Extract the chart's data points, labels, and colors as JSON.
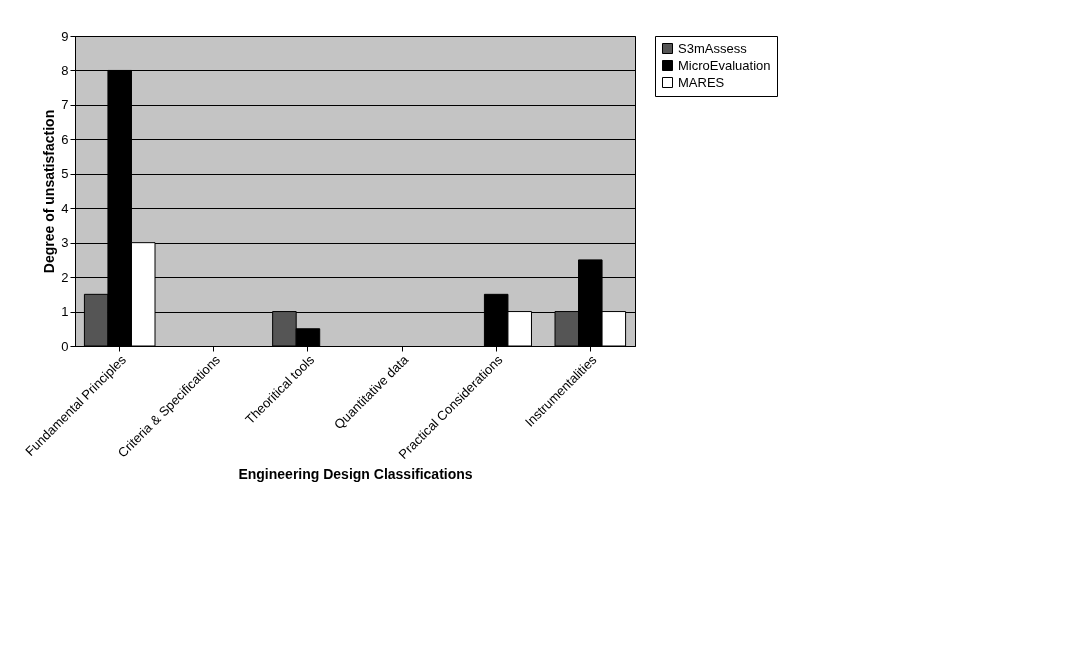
{
  "chart_data": {
    "type": "bar",
    "xlabel": "Engineering Design Classifications",
    "ylabel": "Degree of unsatisfaction",
    "categories": [
      "Fundamental  Principles",
      "Criteria & Specifications",
      "Theoritical  tools",
      "Quantitative  data",
      "Practical  Considerations",
      "Instrumentalities"
    ],
    "series": [
      {
        "name": "S3mAssess",
        "color": "#555555",
        "values": [
          1.5,
          null,
          1,
          null,
          null,
          1
        ]
      },
      {
        "name": "MicroEvaluation",
        "color": "#000000",
        "values": [
          8,
          null,
          0.5,
          null,
          1.5,
          2.5
        ]
      },
      {
        "name": "MARES",
        "color": "#ffffff",
        "values": [
          3,
          null,
          null,
          null,
          1,
          1
        ]
      }
    ],
    "ylim": [
      0,
      9
    ],
    "yticks": [
      0,
      1,
      2,
      3,
      4,
      5,
      6,
      7,
      8,
      9
    ],
    "grid": "y",
    "legend": "right"
  }
}
